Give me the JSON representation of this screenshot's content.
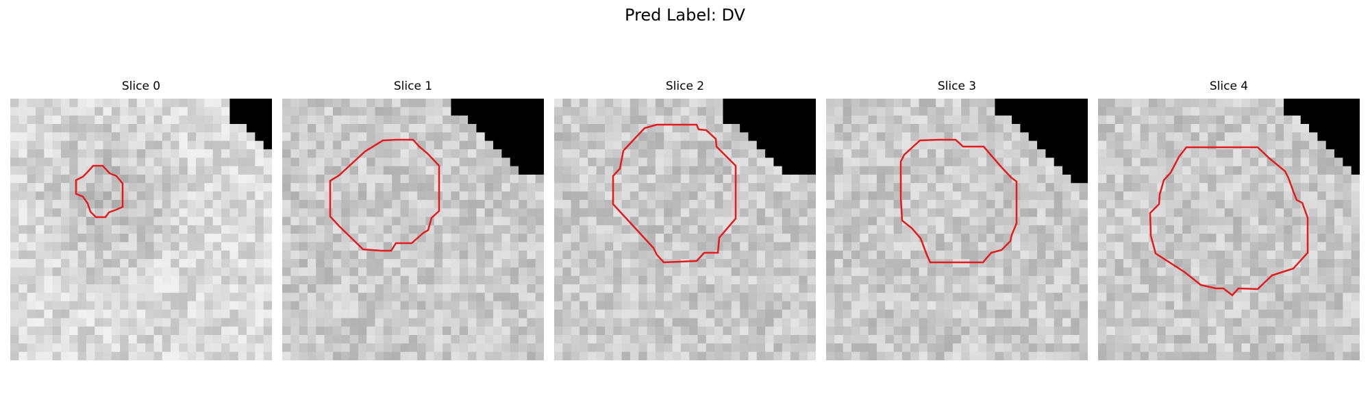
{
  "figure": {
    "title": "Pred Label: DV"
  },
  "panels": [
    {
      "label": "Slice 0"
    },
    {
      "label": "Slice 1"
    },
    {
      "label": "Slice 2"
    },
    {
      "label": "Slice 3"
    },
    {
      "label": "Slice 4"
    }
  ],
  "colors": {
    "contour": "#e41a1c",
    "background": "#ffffff",
    "mask": "#000000"
  }
}
